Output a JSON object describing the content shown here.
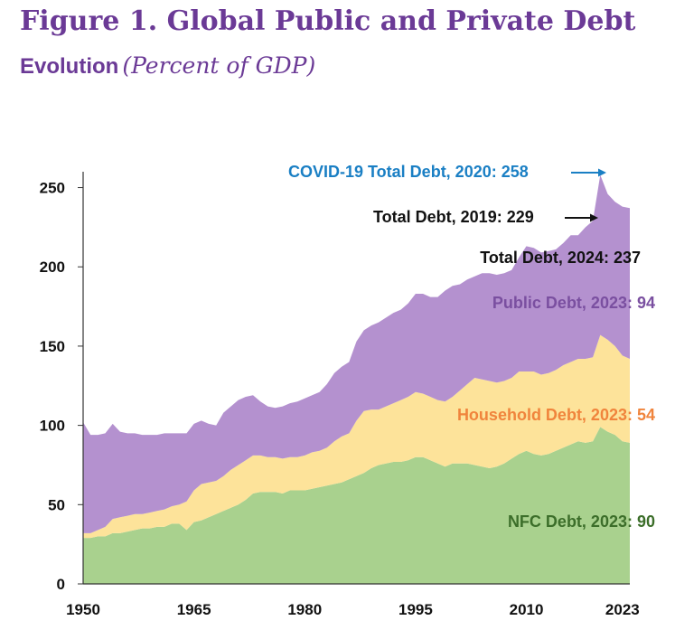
{
  "header": {
    "title": "Figure 1. Global Public and Private Debt",
    "subtitle_bold": "Evolution",
    "subtitle_italic": "(Percent of GDP)"
  },
  "colors": {
    "title": "#6b3a96",
    "public": "#b491cf",
    "household": "#fde39a",
    "nfc": "#a9d18e",
    "covid_annotation": "#1a7fc4",
    "household_label": "#f0843c",
    "public_label": "#7a4fa0",
    "nfc_label": "#3c6e2a",
    "text": "#111111"
  },
  "chart_data": {
    "type": "area",
    "stacked": true,
    "ylim": [
      0,
      260
    ],
    "yticks": [
      0,
      50,
      100,
      150,
      200,
      250
    ],
    "xlim": [
      1950,
      2024
    ],
    "xticks": [
      1950,
      1965,
      1980,
      1995,
      2010,
      2023
    ],
    "x": [
      1950,
      1951,
      1952,
      1953,
      1954,
      1955,
      1956,
      1957,
      1958,
      1959,
      1960,
      1961,
      1962,
      1963,
      1964,
      1965,
      1966,
      1967,
      1968,
      1969,
      1970,
      1971,
      1972,
      1973,
      1974,
      1975,
      1976,
      1977,
      1978,
      1979,
      1980,
      1981,
      1982,
      1983,
      1984,
      1985,
      1986,
      1987,
      1988,
      1989,
      1990,
      1991,
      1992,
      1993,
      1994,
      1995,
      1996,
      1997,
      1998,
      1999,
      2000,
      2001,
      2002,
      2003,
      2004,
      2005,
      2006,
      2007,
      2008,
      2009,
      2010,
      2011,
      2012,
      2013,
      2014,
      2015,
      2016,
      2017,
      2018,
      2019,
      2020,
      2021,
      2022,
      2023,
      2024
    ],
    "series": [
      {
        "name": "NFC Debt",
        "values": [
          29,
          29,
          30,
          30,
          32,
          32,
          33,
          34,
          35,
          35,
          36,
          36,
          38,
          38,
          34,
          39,
          40,
          42,
          44,
          46,
          48,
          50,
          53,
          57,
          58,
          58,
          58,
          57,
          59,
          59,
          59,
          60,
          61,
          62,
          63,
          64,
          66,
          68,
          70,
          73,
          75,
          76,
          77,
          77,
          78,
          80,
          80,
          78,
          76,
          74,
          76,
          76,
          76,
          75,
          74,
          73,
          74,
          76,
          79,
          82,
          84,
          82,
          81,
          82,
          84,
          86,
          88,
          90,
          89,
          90,
          99,
          96,
          94,
          90,
          89
        ]
      },
      {
        "name": "Household Debt",
        "values": [
          3,
          3,
          4,
          6,
          9,
          10,
          10,
          10,
          9,
          10,
          10,
          11,
          11,
          12,
          18,
          20,
          23,
          22,
          21,
          22,
          24,
          25,
          25,
          24,
          23,
          22,
          22,
          22,
          21,
          21,
          22,
          23,
          23,
          24,
          27,
          29,
          29,
          35,
          39,
          37,
          35,
          36,
          37,
          39,
          40,
          41,
          40,
          40,
          40,
          41,
          42,
          46,
          50,
          55,
          55,
          55,
          53,
          52,
          51,
          52,
          50,
          52,
          51,
          51,
          51,
          52,
          52,
          52,
          53,
          53,
          58,
          58,
          56,
          54,
          53
        ]
      },
      {
        "name": "Public Debt",
        "values": [
          70,
          62,
          60,
          59,
          60,
          54,
          52,
          51,
          50,
          49,
          48,
          48,
          46,
          45,
          43,
          42,
          40,
          37,
          35,
          40,
          40,
          41,
          40,
          38,
          34,
          32,
          31,
          33,
          34,
          35,
          36,
          36,
          37,
          40,
          43,
          44,
          45,
          50,
          51,
          53,
          55,
          56,
          57,
          57,
          59,
          62,
          63,
          63,
          65,
          70,
          70,
          67,
          66,
          64,
          67,
          68,
          68,
          68,
          68,
          72,
          79,
          78,
          77,
          77,
          76,
          77,
          80,
          78,
          83,
          86,
          101,
          92,
          91,
          94,
          95
        ]
      }
    ],
    "total_series": "Total Debt",
    "annotations": [
      {
        "text": "COVID-19 Total Debt, 2020: 258",
        "x": 2020,
        "y": 258
      },
      {
        "text": "Total Debt, 2019: 229",
        "x": 2019,
        "y": 229
      },
      {
        "text": "Total Debt, 2024: 237",
        "x": 2024,
        "y": 237
      }
    ],
    "series_labels": [
      {
        "text": "Public Debt, 2023: 94"
      },
      {
        "text": "Household Debt, 2023: 54"
      },
      {
        "text": "NFC Debt, 2023: 90"
      }
    ],
    "grid": false,
    "legend": "none"
  }
}
